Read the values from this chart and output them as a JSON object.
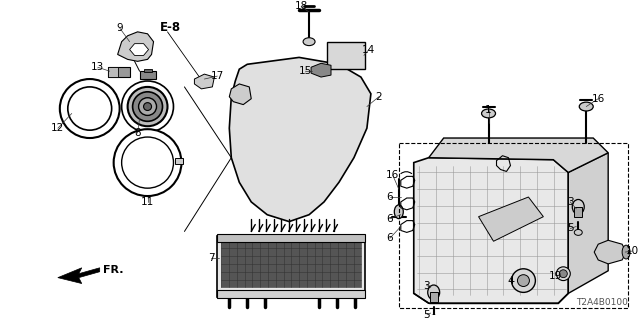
{
  "bg_color": "#ffffff",
  "part_number_label": "T2A4B0100",
  "fig_width": 6.4,
  "fig_height": 3.2,
  "dpi": 100
}
